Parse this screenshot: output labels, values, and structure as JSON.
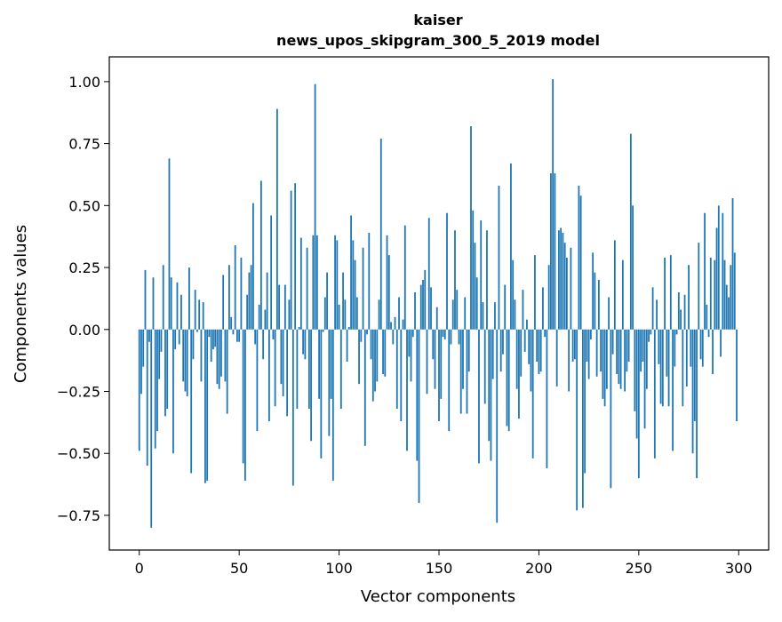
{
  "chart_data": {
    "type": "bar",
    "title_line1": "kaiser",
    "title_line2": "news_upos_skipgram_300_5_2019 model",
    "xlabel": "Vector components",
    "ylabel": "Components values",
    "xlim": [
      -15,
      315
    ],
    "ylim": [
      -0.89,
      1.1
    ],
    "xticks": [
      0,
      50,
      100,
      150,
      200,
      250,
      300
    ],
    "xtick_labels": [
      "0",
      "50",
      "100",
      "150",
      "200",
      "250",
      "300"
    ],
    "yticks": [
      -0.75,
      -0.5,
      -0.25,
      0.0,
      0.25,
      0.5,
      0.75,
      1.0
    ],
    "ytick_labels": [
      "−0.75",
      "−0.50",
      "−0.25",
      "0.00",
      "0.25",
      "0.50",
      "0.75",
      "1.00"
    ],
    "bar_color": "#1f77b4",
    "n_components": 300,
    "values": [
      -0.49,
      -0.26,
      -0.15,
      0.24,
      -0.55,
      -0.05,
      -0.8,
      0.21,
      -0.48,
      -0.41,
      -0.2,
      -0.09,
      0.26,
      -0.35,
      -0.32,
      0.69,
      0.21,
      -0.5,
      -0.08,
      0.19,
      -0.06,
      0.14,
      -0.21,
      -0.25,
      -0.27,
      0.25,
      -0.58,
      -0.12,
      0.16,
      -0.01,
      0.12,
      -0.21,
      0.11,
      -0.62,
      -0.61,
      -0.03,
      -0.13,
      -0.08,
      -0.07,
      -0.22,
      -0.24,
      -0.19,
      0.22,
      -0.21,
      -0.34,
      0.26,
      0.05,
      -0.02,
      0.34,
      -0.05,
      -0.05,
      0.29,
      -0.54,
      -0.61,
      0.14,
      0.23,
      0.26,
      0.51,
      -0.06,
      -0.41,
      0.1,
      0.6,
      -0.12,
      0.08,
      0.23,
      -0.37,
      0.46,
      -0.04,
      -0.31,
      0.89,
      0.18,
      -0.22,
      -0.27,
      0.18,
      -0.35,
      0.12,
      0.56,
      -0.63,
      0.59,
      -0.32,
      0.01,
      0.37,
      -0.1,
      -0.12,
      0.33,
      -0.32,
      -0.45,
      0.38,
      0.99,
      0.38,
      -0.28,
      -0.52,
      -0.01,
      0.13,
      0.23,
      -0.43,
      -0.28,
      -0.61,
      0.38,
      0.36,
      0.1,
      -0.32,
      0.23,
      0.12,
      -0.13,
      0.01,
      0.46,
      0.36,
      0.28,
      0.13,
      -0.22,
      -0.05,
      0.33,
      -0.47,
      -0.02,
      0.39,
      -0.12,
      -0.29,
      -0.25,
      -0.21,
      0.12,
      0.77,
      -0.18,
      -0.19,
      0.38,
      0.3,
      0.03,
      -0.06,
      0.05,
      -0.32,
      0.13,
      -0.37,
      0.04,
      0.42,
      -0.49,
      -0.11,
      -0.21,
      -0.03,
      0.15,
      -0.53,
      -0.7,
      0.18,
      0.2,
      0.24,
      -0.26,
      0.45,
      0.17,
      -0.12,
      -0.24,
      0.09,
      -0.37,
      -0.28,
      -0.03,
      -0.04,
      0.47,
      -0.41,
      -0.06,
      0.12,
      0.4,
      0.16,
      -0.06,
      -0.34,
      -0.24,
      0.13,
      -0.34,
      -0.17,
      0.82,
      0.48,
      0.35,
      0.21,
      -0.54,
      0.44,
      0.11,
      -0.3,
      0.4,
      -0.45,
      -0.53,
      -0.2,
      0.11,
      -0.78,
      0.58,
      -0.17,
      -0.1,
      0.18,
      -0.39,
      -0.41,
      0.67,
      0.28,
      0.12,
      -0.24,
      -0.36,
      -0.19,
      0.16,
      -0.09,
      0.04,
      -0.14,
      -0.25,
      -0.52,
      0.3,
      -0.13,
      -0.18,
      -0.17,
      0.17,
      -0.03,
      -0.56,
      0.26,
      0.63,
      1.01,
      0.63,
      -0.23,
      0.4,
      0.41,
      0.39,
      0.35,
      0.29,
      -0.25,
      0.33,
      -0.13,
      -0.12,
      -0.73,
      0.58,
      0.54,
      -0.72,
      -0.58,
      -0.13,
      -0.2,
      -0.04,
      0.31,
      0.23,
      -0.19,
      0.2,
      -0.17,
      -0.28,
      -0.31,
      -0.24,
      0.13,
      -0.64,
      -0.1,
      0.36,
      -0.18,
      -0.22,
      -0.24,
      0.28,
      -0.25,
      -0.17,
      -0.13,
      0.79,
      0.5,
      -0.33,
      -0.44,
      -0.6,
      -0.17,
      -0.13,
      -0.4,
      -0.24,
      -0.05,
      -0.02,
      0.17,
      -0.52,
      0.12,
      -0.14,
      -0.3,
      -0.31,
      0.29,
      -0.19,
      -0.31,
      0.3,
      -0.49,
      -0.15,
      -0.02,
      0.15,
      0.08,
      -0.31,
      0.14,
      -0.23,
      0.26,
      -0.15,
      -0.5,
      -0.37,
      -0.6,
      0.35,
      -0.12,
      -0.15,
      0.47,
      0.1,
      -0.03,
      0.29,
      -0.18,
      0.28,
      0.41,
      0.5,
      -0.11,
      0.47,
      0.28,
      0.18,
      0.13,
      0.26,
      0.53,
      0.31,
      -0.37
    ]
  }
}
